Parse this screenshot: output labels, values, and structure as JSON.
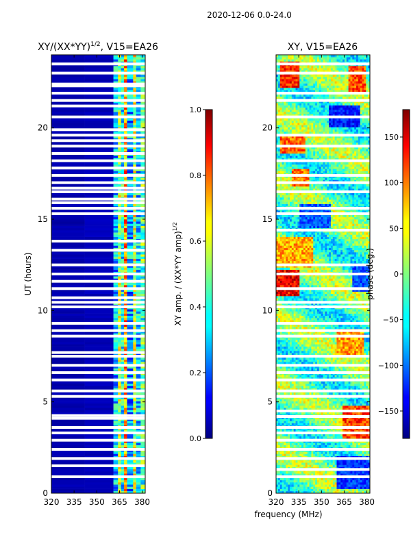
{
  "figure": {
    "suptitle": "2020-12-06 0.0-24.0",
    "shared_xlabel": "frequency (MHz)"
  },
  "colors": {
    "jet": [
      "#00007f",
      "#0000ff",
      "#007fff",
      "#00ffff",
      "#7fff7f",
      "#ffff00",
      "#ff7f00",
      "#ff0000",
      "#7f0000"
    ],
    "gap": "#ffffff",
    "spine": "#000000"
  },
  "chart_data": [
    {
      "type": "heatmap",
      "title_main": "XY/(XX*YY)",
      "title_exp": "1/2",
      "title_tail": ", V15=EA26",
      "xlabel": "",
      "ylabel": "UT (hours)",
      "xlim": [
        320,
        382
      ],
      "ylim": [
        0,
        24
      ],
      "xticks": [
        320,
        335,
        350,
        365,
        380
      ],
      "yticks": [
        0,
        5,
        10,
        15,
        20
      ],
      "colorbar": {
        "label_main": "XY amp. / (XX*YY amp)",
        "label_exp": "1/2",
        "range": [
          0.0,
          1.0
        ],
        "ticks": [
          "0.0",
          "0.2",
          "0.4",
          "0.6",
          "0.8",
          "1.0"
        ]
      },
      "bands": [
        {
          "f": [
            320,
            342
          ],
          "level": 0.03
        },
        {
          "f": [
            342,
            361
          ],
          "level": 0.04
        },
        {
          "f": [
            361,
            364
          ],
          "level": 0.32
        },
        {
          "f": [
            364,
            366
          ],
          "level": 0.55
        },
        {
          "f": [
            366,
            368
          ],
          "level": 0.38
        },
        {
          "f": [
            368,
            370
          ],
          "level": 0.72
        },
        {
          "f": [
            370,
            374
          ],
          "level": 0.3
        },
        {
          "f": [
            374,
            376
          ],
          "level": 0.58
        },
        {
          "f": [
            376,
            379
          ],
          "level": 0.34
        },
        {
          "f": [
            379,
            382
          ],
          "level": 0.45
        }
      ],
      "flagged_hours": [
        0.9,
        1.5,
        1.9,
        2.4,
        2.9,
        3.3,
        3.6,
        4.1,
        4.25,
        5.3,
        5.6,
        6.2,
        6.6,
        7.0,
        7.5,
        7.7,
        8.6,
        8.9,
        9.3,
        10.2,
        10.45,
        10.7,
        11.2,
        11.6,
        12.0,
        12.5,
        13.3,
        13.8,
        15.3,
        15.6,
        15.9,
        16.1,
        16.5,
        16.7,
        17.0,
        17.4,
        17.8,
        18.2,
        18.6,
        19.0,
        19.3,
        19.6,
        19.9,
        20.6,
        21.2,
        21.5,
        21.9,
        22.3,
        22.4,
        23.0,
        23.5
      ]
    },
    {
      "type": "heatmap",
      "title_main": "XY, V15=EA26",
      "xlabel": "frequency (MHz)",
      "ylabel": "",
      "xlim": [
        320,
        382
      ],
      "ylim": [
        0,
        24
      ],
      "xticks": [
        320,
        335,
        350,
        365,
        380
      ],
      "yticks": [
        0,
        5,
        10,
        15,
        20
      ],
      "colorbar": {
        "label_main": "phase (deg.)",
        "range": [
          -180,
          180
        ],
        "ticks": [
          "−150",
          "−100",
          "−50",
          "0",
          "50",
          "100",
          "150"
        ]
      },
      "warm_patches": [
        {
          "f": [
            322,
            336
          ],
          "t": [
            22.2,
            23.6
          ],
          "level": 0.85
        },
        {
          "f": [
            368,
            380
          ],
          "t": [
            22.0,
            23.4
          ],
          "level": 0.8
        },
        {
          "f": [
            322,
            340
          ],
          "t": [
            18.6,
            19.6
          ],
          "level": 0.78
        },
        {
          "f": [
            320,
            335
          ],
          "t": [
            10.8,
            12.2
          ],
          "level": 0.88
        },
        {
          "f": [
            320,
            345
          ],
          "t": [
            12.4,
            14.0
          ],
          "level": 0.7
        },
        {
          "f": [
            364,
            382
          ],
          "t": [
            3.0,
            4.8
          ],
          "level": 0.82
        },
        {
          "f": [
            360,
            378
          ],
          "t": [
            7.6,
            9.0
          ],
          "level": 0.72
        },
        {
          "f": [
            330,
            342
          ],
          "t": [
            16.8,
            17.8
          ],
          "level": 0.76
        }
      ],
      "cool_patches": [
        {
          "f": [
            355,
            375
          ],
          "t": [
            20.0,
            21.2
          ],
          "level": 0.15
        },
        {
          "f": [
            360,
            382
          ],
          "t": [
            0.2,
            2.0
          ],
          "level": 0.18
        },
        {
          "f": [
            336,
            356
          ],
          "t": [
            14.5,
            15.8
          ],
          "level": 0.22
        },
        {
          "f": [
            370,
            382
          ],
          "t": [
            11.0,
            12.5
          ],
          "level": 0.2
        }
      ],
      "flagged_hours": [
        0.9,
        1.3,
        1.9,
        2.4,
        2.9,
        3.3,
        3.6,
        4.2,
        4.5,
        5.3,
        5.6,
        6.2,
        6.6,
        7.0,
        7.5,
        8.6,
        8.9,
        9.3,
        10.2,
        10.45,
        11.2,
        12.0,
        12.5,
        14.4,
        15.3,
        15.6,
        16.5,
        17.0,
        17.4,
        18.2,
        19.0,
        19.6,
        20.6,
        21.5,
        21.9,
        23.0,
        23.5
      ]
    }
  ]
}
